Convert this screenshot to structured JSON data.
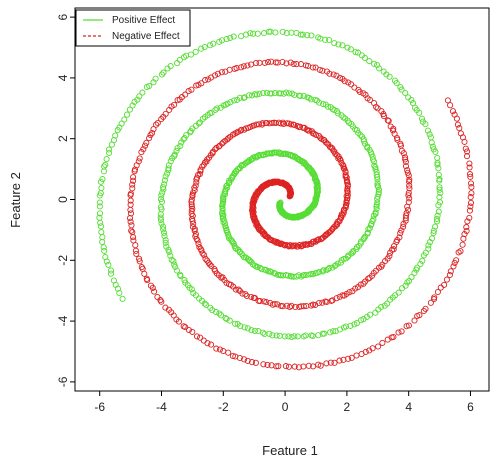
{
  "chart_data": {
    "type": "scatter",
    "title": "",
    "xlabel": "Feature 1",
    "ylabel": "Feature 2",
    "xlim": [
      -6.8,
      6.6
    ],
    "ylim": [
      -6.3,
      6.3
    ],
    "xticks": [
      -6,
      -4,
      -2,
      0,
      2,
      4,
      6
    ],
    "yticks": [
      -6,
      -4,
      -2,
      0,
      2,
      4,
      6
    ],
    "grid": false,
    "legend": {
      "position": "top-left",
      "entries": [
        {
          "label": "Positive Effect",
          "color": "#55dd33",
          "style": "solid"
        },
        {
          "label": "Negative Effect",
          "color": "#dd2222",
          "style": "dashed"
        }
      ]
    },
    "marker": "open-circle",
    "series": [
      {
        "name": "Positive Effect",
        "color": "#55dd33",
        "spiral": {
          "form": "r = theta/pi",
          "theta_start": 0.6,
          "theta_end": 19.4,
          "phase": 3.14159,
          "approx_points": 700
        }
      },
      {
        "name": "Negative Effect",
        "color": "#dd2222",
        "spiral": {
          "form": "r = theta/pi",
          "theta_start": 0.6,
          "theta_end": 19.4,
          "phase": 0,
          "approx_points": 700
        }
      }
    ]
  }
}
